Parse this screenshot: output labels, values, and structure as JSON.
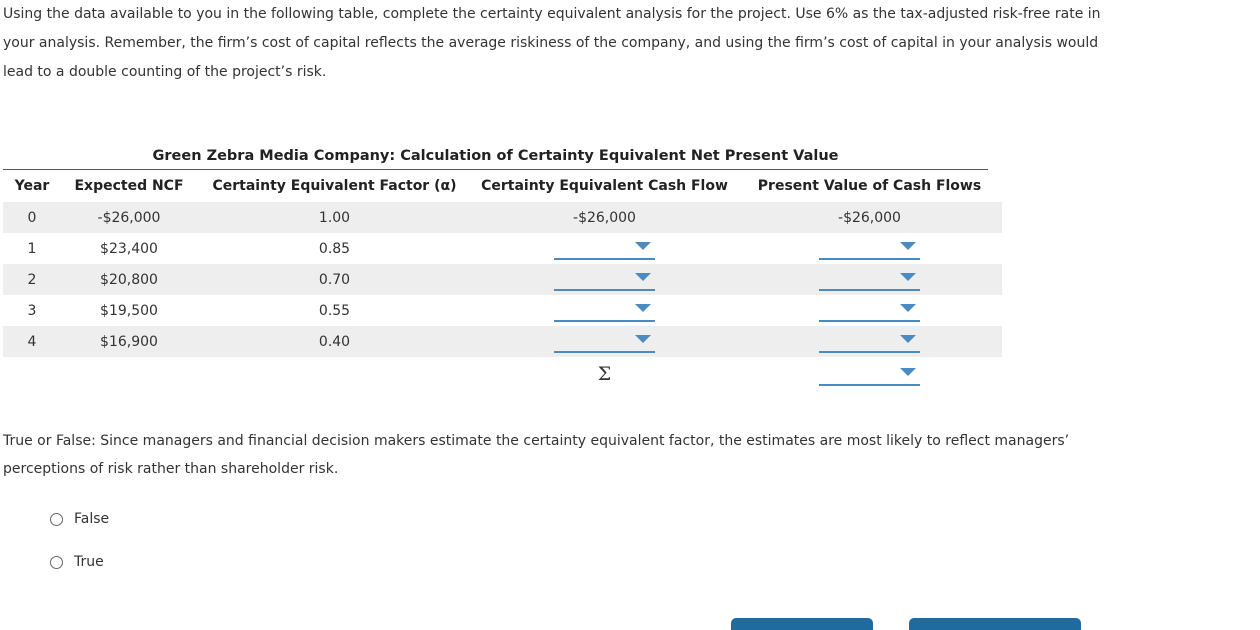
{
  "intro_text": "Using the data available to you in the following table, complete the certainty equivalent analysis for the project. Use 6% as the tax-adjusted risk-free rate in your analysis. Remember, the firm’s cost of capital reflects the average riskiness of the company, and using the firm’s cost of capital in your analysis would lead to a double counting of the project’s risk.",
  "table": {
    "title": "Green Zebra Media Company: Calculation of Certainty Equivalent Net Present Value",
    "headers": {
      "year": "Year",
      "ncf": "Expected NCF",
      "cef": "Certainty Equivalent Factor (α)",
      "cecf": "Certainty Equivalent Cash Flow",
      "pv": "Present Value of Cash Flows"
    },
    "rows": [
      {
        "year": "0",
        "ncf": "-$26,000",
        "cef": "1.00",
        "cecf": "-$26,000",
        "pv": "-$26,000"
      },
      {
        "year": "1",
        "ncf": "$23,400",
        "cef": "0.85",
        "cecf": "",
        "pv": ""
      },
      {
        "year": "2",
        "ncf": "$20,800",
        "cef": "0.70",
        "cecf": "",
        "pv": ""
      },
      {
        "year": "3",
        "ncf": "$19,500",
        "cef": "0.55",
        "cecf": "",
        "pv": ""
      },
      {
        "year": "4",
        "ncf": "$16,900",
        "cef": "0.40",
        "cecf": "",
        "pv": ""
      }
    ],
    "sum_symbol": "Σ"
  },
  "question": {
    "text": "True or False: Since managers and financial decision makers estimate the certainty equivalent factor, the estimates are most likely to reflect managers’ perceptions of risk rather than shareholder risk.",
    "options": [
      "False",
      "True"
    ]
  },
  "colors": {
    "dropdown_accent": "#4a8bc2",
    "button": "#1f6a9e",
    "row_shade": "#eeeeef"
  }
}
